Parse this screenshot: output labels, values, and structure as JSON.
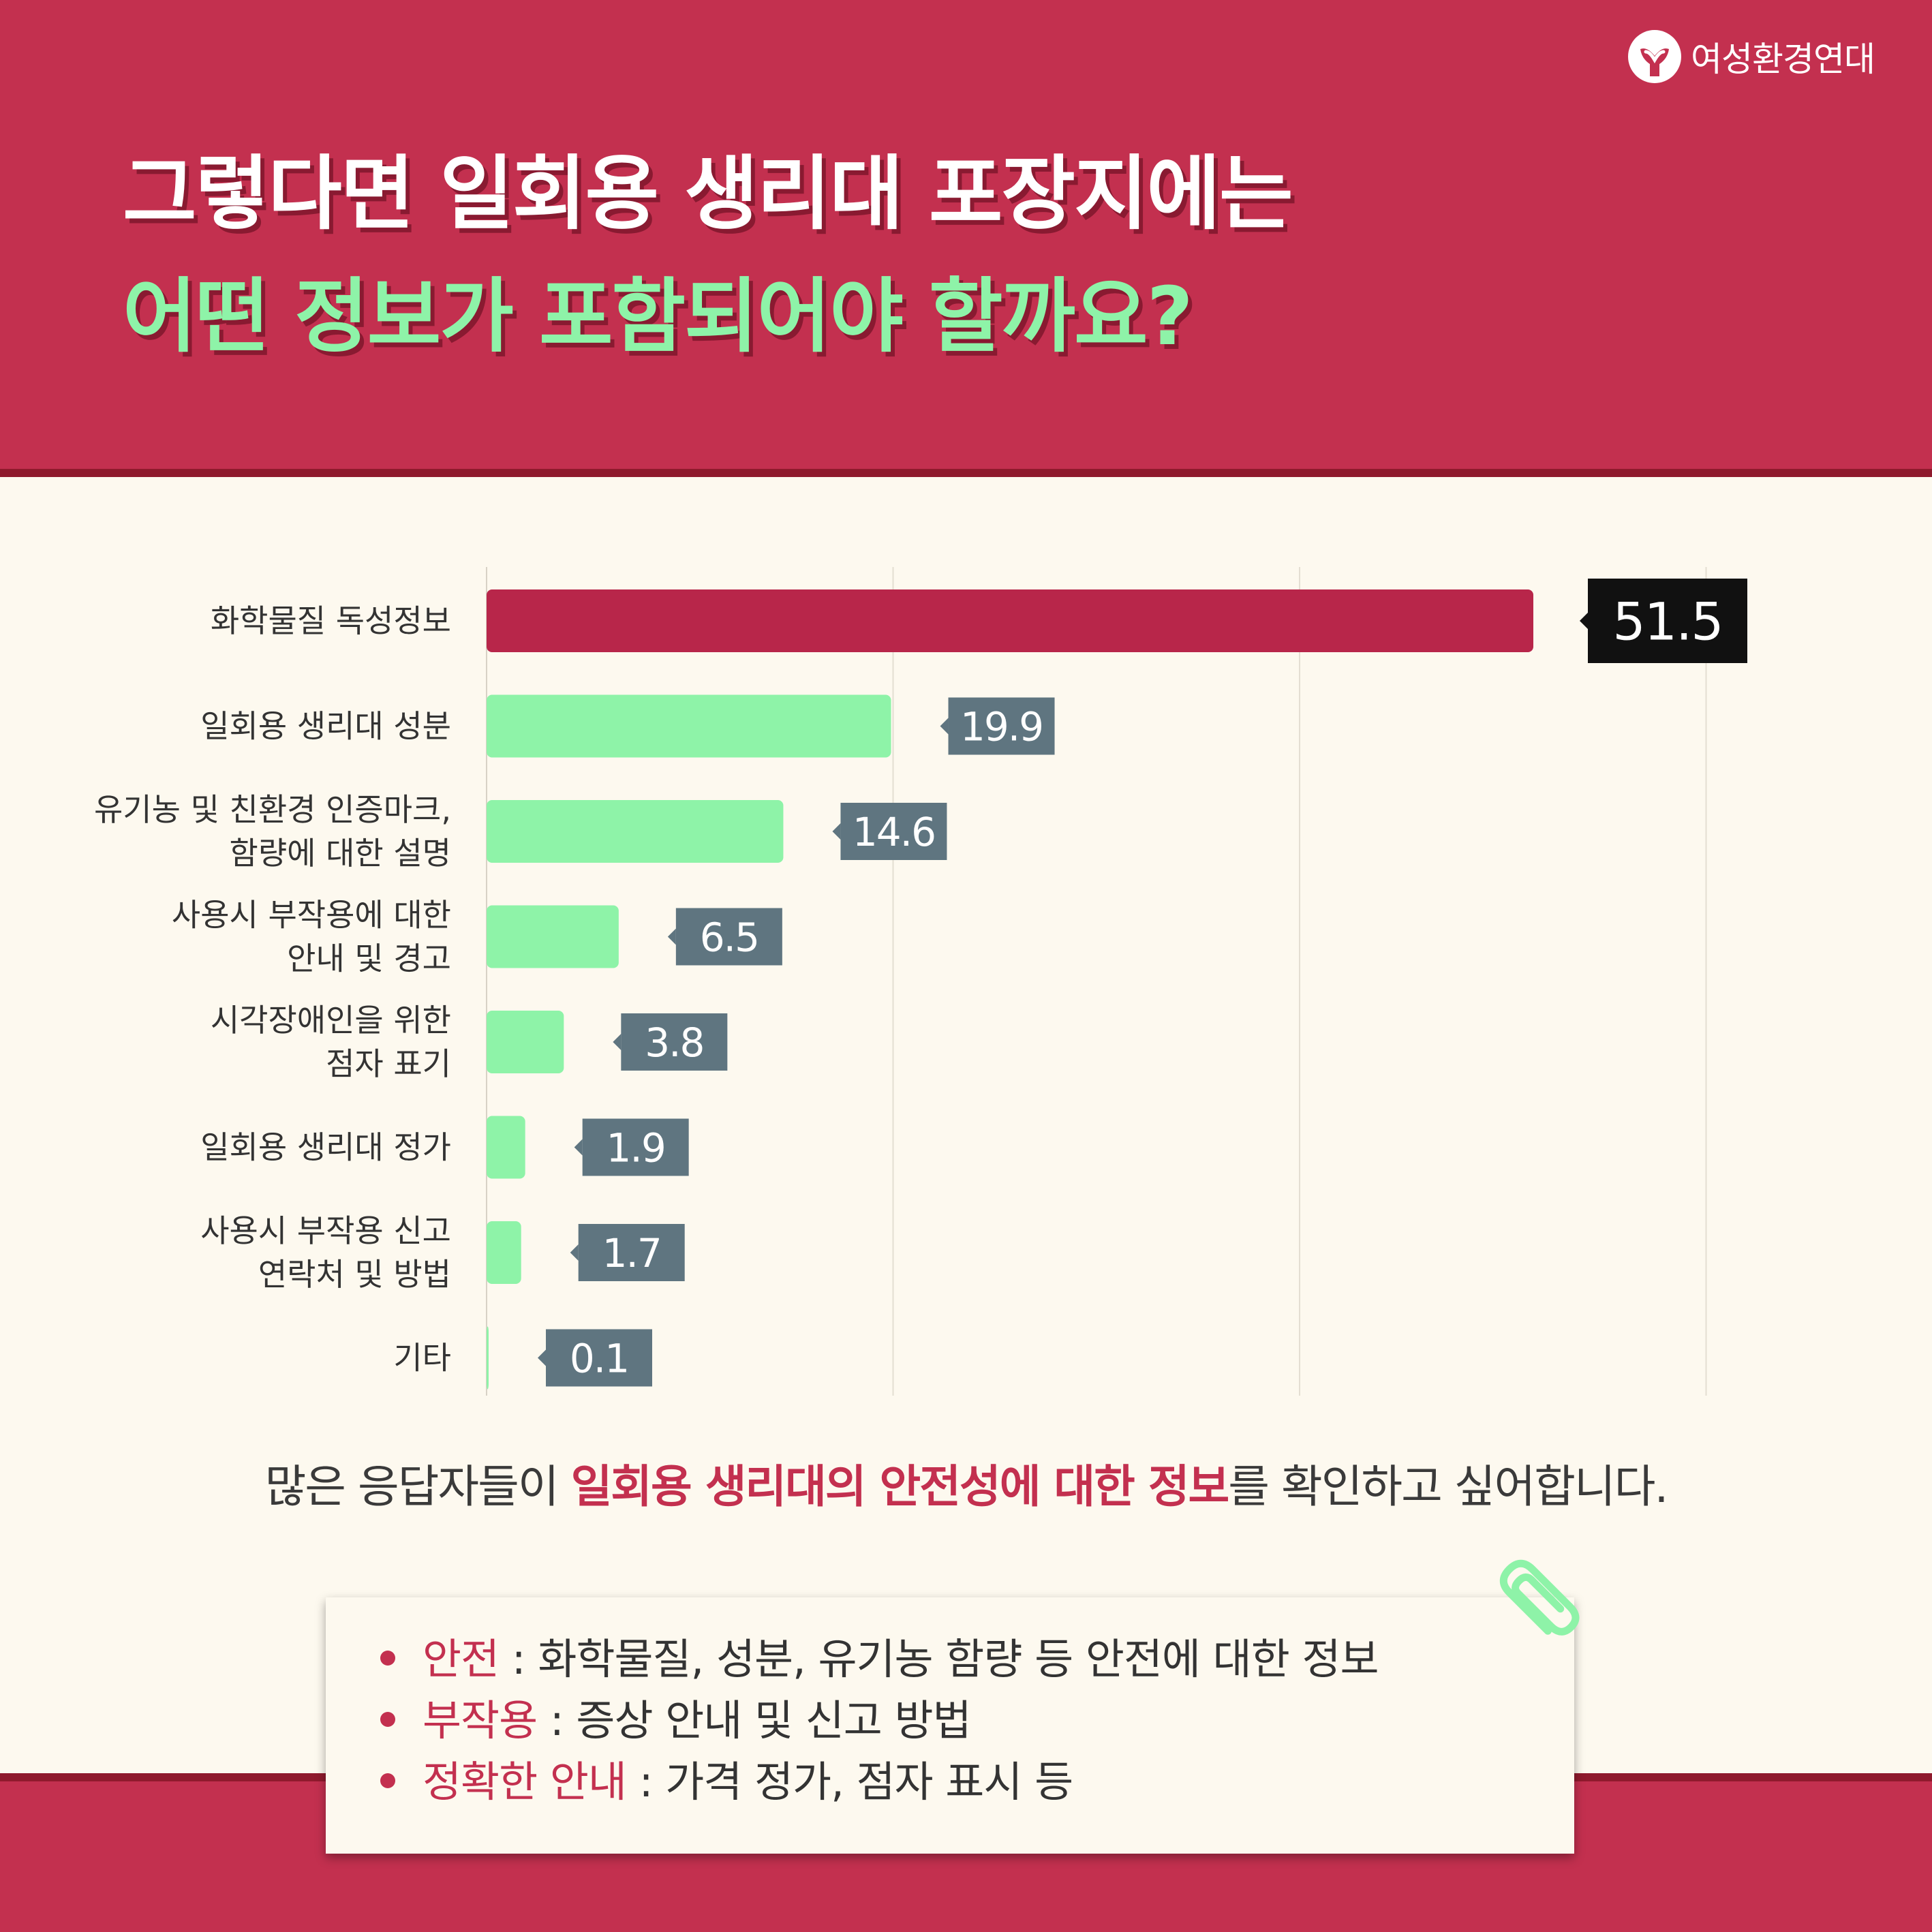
{
  "brand": {
    "name": "여성환경연대"
  },
  "headline": {
    "line1": "그렇다면 일회용 생리대 포장지에는",
    "line2": "어떤 정보가 포함되어야 할까요?"
  },
  "colors": {
    "primary": "#c3304f",
    "accent_green": "#8ef3a8",
    "highlight_bar": "#b8264a",
    "label_box": "#5f7580",
    "top_label_box": "#111111",
    "background": "#fdf9ef"
  },
  "chart_data": {
    "type": "bar",
    "orientation": "horizontal",
    "categories": [
      [
        "화학물질 독성정보"
      ],
      [
        "일회용 생리대 성분"
      ],
      [
        "유기농 및 친환경 인증마크,",
        "함량에 대한 설명"
      ],
      [
        "사용시 부작용에 대한",
        "안내 및 경고"
      ],
      [
        "시각장애인을 위한",
        "점자 표기"
      ],
      [
        "일회용 생리대 정가"
      ],
      [
        "사용시 부작용 신고",
        "연락처 및 방법"
      ],
      [
        "기타"
      ]
    ],
    "values": [
      51.5,
      19.9,
      14.6,
      6.5,
      3.8,
      1.9,
      1.7,
      0.1
    ],
    "value_labels": [
      "51.5",
      "19.9",
      "14.6",
      "6.5",
      "3.8",
      "1.9",
      "1.7",
      "0.1"
    ],
    "xlim": [
      0,
      60
    ],
    "grid": true,
    "highlight_index": 0
  },
  "summary": {
    "before": "많은 응답자들이 ",
    "highlight": "일회용 생리대의 안전성에 대한 정보",
    "after": "를 확인하고 싶어합니다."
  },
  "notes": [
    {
      "term": "안전",
      "text": " : 화학물질, 성분, 유기농 함량 등 안전에 대한 정보"
    },
    {
      "term": "부작용",
      "text": " : 증상 안내 및 신고 방법"
    },
    {
      "term": "정확한 안내",
      "text": " : 가격 정가, 점자 표시 등"
    }
  ]
}
